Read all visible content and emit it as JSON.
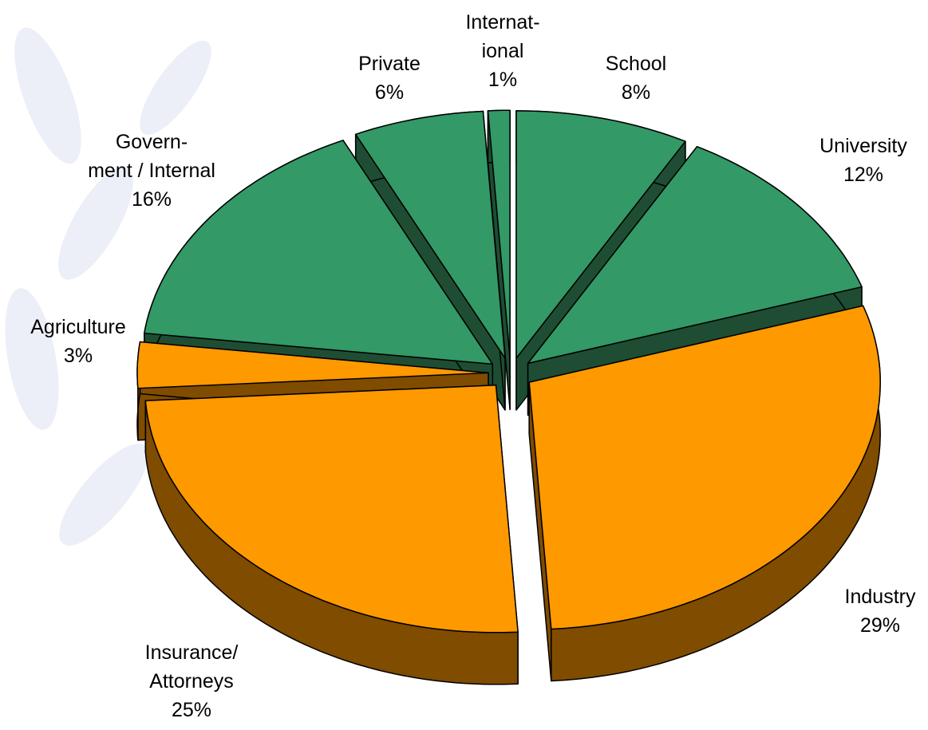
{
  "chart_data": {
    "type": "pie3d",
    "categories": [
      "School",
      "University",
      "Industry",
      "Insurance/\nAttorneys",
      "Agriculture",
      "Govern-\nment / Internal",
      "Private",
      "Internat-\nional"
    ],
    "values": [
      8,
      12,
      29,
      25,
      3,
      16,
      6,
      1
    ],
    "value_labels": [
      "8%",
      "12%",
      "29%",
      "25%",
      "3%",
      "16%",
      "6%",
      "1%"
    ],
    "colors": [
      "#339966",
      "#339966",
      "#ff9900",
      "#ff9900",
      "#ff9900",
      "#339966",
      "#339966",
      "#339966"
    ],
    "depth_colors": [
      "#1e4d33",
      "#1e4d33",
      "#7f4c00",
      "#7f4c00",
      "#7f4c00",
      "#1e4d33",
      "#1e4d33",
      "#1e4d33"
    ]
  }
}
